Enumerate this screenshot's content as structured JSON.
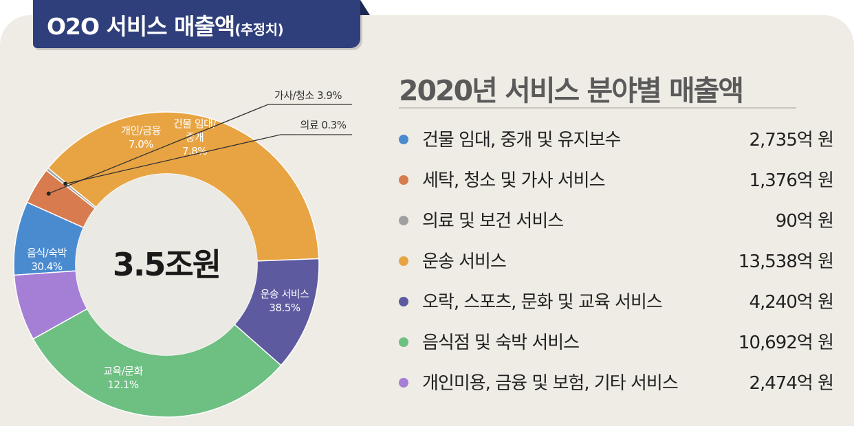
{
  "header": {
    "title": "O2O 서비스 매출액",
    "subtitle": "(추정치)"
  },
  "section_title": "2020년 서비스 분야별 매출액",
  "center_label": "3.5조원",
  "legend": [
    {
      "label": "건물 임대, 중개 및 유지보수",
      "value": "2,735억 원",
      "color": "#4a8bd0"
    },
    {
      "label": "세탁, 청소 및 가사 서비스",
      "value": "1,376억 원",
      "color": "#d87b4e"
    },
    {
      "label": "의료 및 보건 서비스",
      "value": "90억 원",
      "color": "#a0a0a0"
    },
    {
      "label": "운송 서비스",
      "value": "13,538억 원",
      "color": "#e8a443"
    },
    {
      "label": "오락, 스포츠, 문화 및 교육 서비스",
      "value": "4,240억 원",
      "color": "#5d5aa0"
    },
    {
      "label": "음식점 및 숙박 서비스",
      "value": "10,692억 원",
      "color": "#6dbf82"
    },
    {
      "label": "개인미용, 금융 및 보험, 기타 서비스",
      "value": "2,474억 원",
      "color": "#a57ed6"
    }
  ],
  "chart_data": {
    "type": "pie",
    "title": "O2O 서비스 매출액",
    "center_text": "3.5조원",
    "slices": [
      {
        "label": "건물 임대/\n중개",
        "percent_label": "7.8%",
        "value": 7.8,
        "color": "#4a8bd0",
        "label_color": "#ffffff"
      },
      {
        "label": "가사/청소",
        "percent_label": "3.9%",
        "value": 3.9,
        "color": "#d87b4e",
        "label_color": "#333333"
      },
      {
        "label": "의료",
        "percent_label": "0.3%",
        "value": 0.3,
        "color": "#a0a0a0",
        "label_color": "#333333"
      },
      {
        "label": "운송 서비스",
        "percent_label": "38.5%",
        "value": 38.5,
        "color": "#e8a443",
        "label_color": "#ffffff"
      },
      {
        "label": "교육/문화",
        "percent_label": "12.1%",
        "value": 12.1,
        "color": "#5d5aa0",
        "label_color": "#ffffff"
      },
      {
        "label": "음식/숙박",
        "percent_label": "30.4%",
        "value": 30.4,
        "color": "#6dbf82",
        "label_color": "#ffffff"
      },
      {
        "label": "개인/금융",
        "percent_label": "7.0%",
        "value": 7.0,
        "color": "#a57ed6",
        "label_color": "#ffffff"
      }
    ]
  }
}
